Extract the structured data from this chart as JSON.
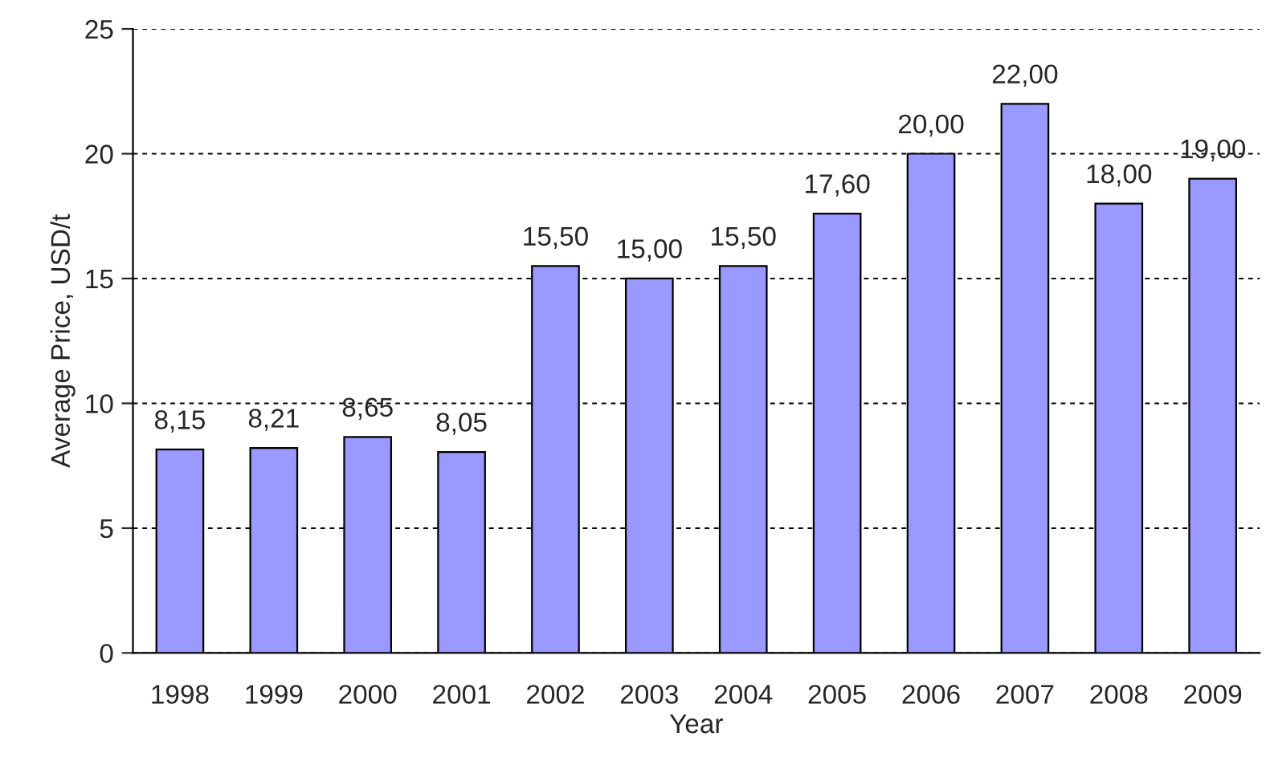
{
  "chart_data": {
    "type": "bar",
    "xlabel": "Year",
    "ylabel": "Average Price, USD/t",
    "categories": [
      "1998",
      "1999",
      "2000",
      "2001",
      "2002",
      "2003",
      "2004",
      "2005",
      "2006",
      "2007",
      "2008",
      "2009"
    ],
    "values": [
      8.15,
      8.21,
      8.65,
      8.05,
      15.5,
      15.0,
      15.5,
      17.6,
      20.0,
      22.0,
      18.0,
      19.0
    ],
    "value_labels": [
      "8,15",
      "8,21",
      "8,65",
      "8,05",
      "15,50",
      "15,00",
      "15,50",
      "17,60",
      "20,00",
      "22,00",
      "18,00",
      "19,00"
    ],
    "color": "#9999ff",
    "ylim": [
      0,
      25
    ],
    "yticks": [
      0,
      5,
      10,
      15,
      20,
      25
    ],
    "grid": "y",
    "legend": false
  }
}
